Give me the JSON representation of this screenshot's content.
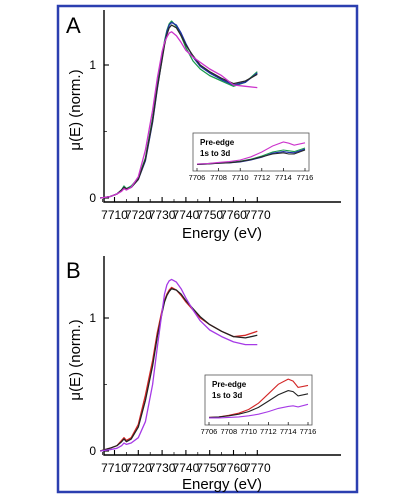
{
  "chart_data": [
    {
      "panel": "A",
      "type": "line",
      "xlabel": "Energy (eV)",
      "ylabel": "μ(E) (norm.)",
      "xlim": [
        7704,
        7770
      ],
      "ylim": [
        -0.02,
        1.4
      ],
      "x_ticks": [
        7710,
        7720,
        7730,
        7740,
        7750,
        7760,
        7770
      ],
      "y_ticks": [
        0,
        1
      ],
      "series": [
        {
          "color": "#1a9a4c",
          "x": [
            7704,
            7708,
            7711,
            7713,
            7714,
            7715,
            7717,
            7720,
            7723,
            7726,
            7728,
            7730,
            7731,
            7732,
            7733,
            7734,
            7736,
            7738,
            7740,
            7743,
            7746,
            7750,
            7755,
            7760,
            7765,
            7770
          ],
          "y": [
            0.0,
            0.01,
            0.03,
            0.06,
            0.09,
            0.07,
            0.09,
            0.15,
            0.3,
            0.6,
            0.85,
            1.07,
            1.18,
            1.26,
            1.31,
            1.33,
            1.29,
            1.22,
            1.13,
            1.03,
            0.97,
            0.92,
            0.88,
            0.84,
            0.87,
            0.95
          ]
        },
        {
          "color": "#1d2fa8",
          "x": [
            7704,
            7708,
            7711,
            7713,
            7714,
            7715,
            7717,
            7720,
            7723,
            7726,
            7728,
            7730,
            7731,
            7732,
            7733,
            7734,
            7736,
            7738,
            7740,
            7743,
            7746,
            7750,
            7755,
            7760,
            7765,
            7770
          ],
          "y": [
            0.0,
            0.01,
            0.03,
            0.06,
            0.08,
            0.07,
            0.08,
            0.14,
            0.28,
            0.57,
            0.82,
            1.05,
            1.16,
            1.25,
            1.3,
            1.32,
            1.3,
            1.24,
            1.16,
            1.06,
            0.99,
            0.94,
            0.89,
            0.85,
            0.87,
            0.94
          ]
        },
        {
          "color": "#2a2a2a",
          "x": [
            7704,
            7708,
            7711,
            7713,
            7714,
            7715,
            7717,
            7720,
            7723,
            7726,
            7728,
            7730,
            7731,
            7732,
            7733,
            7734,
            7736,
            7738,
            7740,
            7743,
            7746,
            7750,
            7755,
            7760,
            7765,
            7770
          ],
          "y": [
            0.0,
            0.01,
            0.03,
            0.06,
            0.08,
            0.07,
            0.08,
            0.14,
            0.29,
            0.58,
            0.83,
            1.04,
            1.15,
            1.23,
            1.28,
            1.3,
            1.28,
            1.22,
            1.15,
            1.07,
            1.0,
            0.95,
            0.9,
            0.86,
            0.88,
            0.93
          ]
        },
        {
          "color": "#cc33cc",
          "x": [
            7704,
            7708,
            7711,
            7713,
            7714,
            7715,
            7717,
            7720,
            7723,
            7726,
            7728,
            7730,
            7731,
            7732,
            7733,
            7734,
            7736,
            7738,
            7740,
            7743,
            7746,
            7750,
            7755,
            7760,
            7765,
            7770
          ],
          "y": [
            0.0,
            0.01,
            0.03,
            0.05,
            0.07,
            0.06,
            0.08,
            0.16,
            0.36,
            0.66,
            0.9,
            1.1,
            1.17,
            1.21,
            1.24,
            1.25,
            1.22,
            1.17,
            1.11,
            1.06,
            1.02,
            0.97,
            0.92,
            0.85,
            0.84,
            0.83
          ]
        }
      ],
      "inset": {
        "title": [
          "Pre-edge",
          "1s to 3d"
        ],
        "x_ticks": [
          7706,
          7708,
          7710,
          7712,
          7714,
          7716
        ],
        "xlim": [
          7706,
          7716
        ],
        "series": [
          {
            "color": "#1a9a4c",
            "x": [
              7706,
              7707,
              7708,
              7709,
              7710,
              7711,
              7712,
              7713,
              7714,
              7714.5,
              7715,
              7716
            ],
            "y": [
              0.05,
              0.06,
              0.08,
              0.09,
              0.12,
              0.17,
              0.25,
              0.35,
              0.4,
              0.38,
              0.36,
              0.45
            ]
          },
          {
            "color": "#1d2fa8",
            "x": [
              7706,
              7707,
              7708,
              7709,
              7710,
              7711,
              7712,
              7713,
              7714,
              7714.5,
              7715,
              7716
            ],
            "y": [
              0.04,
              0.05,
              0.07,
              0.08,
              0.1,
              0.15,
              0.22,
              0.32,
              0.36,
              0.34,
              0.33,
              0.42
            ]
          },
          {
            "color": "#2a2a2a",
            "x": [
              7706,
              7707,
              7708,
              7709,
              7710,
              7711,
              7712,
              7713,
              7714,
              7714.5,
              7715,
              7716
            ],
            "y": [
              0.04,
              0.05,
              0.07,
              0.08,
              0.11,
              0.16,
              0.23,
              0.3,
              0.33,
              0.3,
              0.3,
              0.4
            ]
          },
          {
            "color": "#cc33cc",
            "x": [
              7706,
              7707,
              7708,
              7709,
              7710,
              7711,
              7712,
              7713,
              7714,
              7714.5,
              7715,
              7716
            ],
            "y": [
              0.05,
              0.06,
              0.09,
              0.11,
              0.15,
              0.23,
              0.35,
              0.5,
              0.6,
              0.57,
              0.52,
              0.58
            ]
          }
        ]
      }
    },
    {
      "panel": "B",
      "type": "line",
      "xlabel": "Energy (eV)",
      "ylabel": "μ(E) (norm.)",
      "xlim": [
        7704,
        7770
      ],
      "ylim": [
        -0.02,
        1.4
      ],
      "x_ticks": [
        7710,
        7720,
        7730,
        7740,
        7750,
        7760,
        7770
      ],
      "y_ticks": [
        0,
        1
      ],
      "series": [
        {
          "color": "#d32626",
          "x": [
            7704,
            7708,
            7711,
            7713,
            7714,
            7715,
            7717,
            7720,
            7723,
            7726,
            7728,
            7730,
            7731,
            7732,
            7733,
            7734,
            7736,
            7738,
            7740,
            7743,
            7746,
            7750,
            7755,
            7760,
            7765,
            7770
          ],
          "y": [
            0.0,
            0.02,
            0.04,
            0.08,
            0.1,
            0.08,
            0.1,
            0.2,
            0.42,
            0.68,
            0.89,
            1.06,
            1.13,
            1.18,
            1.21,
            1.23,
            1.21,
            1.17,
            1.12,
            1.06,
            1.0,
            0.95,
            0.9,
            0.86,
            0.87,
            0.9
          ]
        },
        {
          "color": "#222222",
          "x": [
            7704,
            7708,
            7711,
            7713,
            7714,
            7715,
            7717,
            7720,
            7723,
            7726,
            7728,
            7730,
            7731,
            7732,
            7733,
            7734,
            7736,
            7738,
            7740,
            7743,
            7746,
            7750,
            7755,
            7760,
            7765,
            7770
          ],
          "y": [
            0.0,
            0.02,
            0.04,
            0.07,
            0.09,
            0.07,
            0.09,
            0.18,
            0.38,
            0.64,
            0.86,
            1.04,
            1.12,
            1.17,
            1.2,
            1.22,
            1.21,
            1.18,
            1.13,
            1.07,
            1.01,
            0.95,
            0.9,
            0.86,
            0.85,
            0.87
          ]
        },
        {
          "color": "#a63ae6",
          "x": [
            7704,
            7708,
            7711,
            7713,
            7714,
            7715,
            7717,
            7720,
            7723,
            7726,
            7728,
            7730,
            7731,
            7732,
            7733,
            7734,
            7736,
            7738,
            7740,
            7743,
            7746,
            7750,
            7755,
            7760,
            7765,
            7770
          ],
          "y": [
            0.0,
            0.01,
            0.02,
            0.04,
            0.06,
            0.05,
            0.06,
            0.1,
            0.22,
            0.5,
            0.78,
            1.05,
            1.18,
            1.25,
            1.28,
            1.29,
            1.27,
            1.22,
            1.15,
            1.06,
            0.98,
            0.91,
            0.86,
            0.82,
            0.8,
            0.8
          ]
        }
      ],
      "inset": {
        "title": [
          "Pre-edge",
          "1s to 3d"
        ],
        "x_ticks": [
          7706,
          7708,
          7710,
          7712,
          7714,
          7716
        ],
        "xlim": [
          7706,
          7716
        ],
        "series": [
          {
            "color": "#d32626",
            "x": [
              7706,
              7707,
              7708,
              7709,
              7710,
              7711,
              7712,
              7713,
              7714,
              7714.5,
              7715,
              7716
            ],
            "y": [
              0.05,
              0.06,
              0.09,
              0.13,
              0.2,
              0.32,
              0.5,
              0.68,
              0.78,
              0.74,
              0.62,
              0.66
            ]
          },
          {
            "color": "#222222",
            "x": [
              7706,
              7707,
              7708,
              7709,
              7710,
              7711,
              7712,
              7713,
              7714,
              7714.5,
              7715,
              7716
            ],
            "y": [
              0.05,
              0.06,
              0.08,
              0.11,
              0.16,
              0.24,
              0.36,
              0.48,
              0.56,
              0.54,
              0.46,
              0.5
            ]
          },
          {
            "color": "#a63ae6",
            "x": [
              7706,
              7707,
              7708,
              7709,
              7710,
              7711,
              7712,
              7713,
              7714,
              7714.5,
              7715,
              7716
            ],
            "y": [
              0.04,
              0.04,
              0.05,
              0.06,
              0.08,
              0.11,
              0.16,
              0.22,
              0.26,
              0.27,
              0.25,
              0.3
            ]
          }
        ]
      }
    }
  ]
}
